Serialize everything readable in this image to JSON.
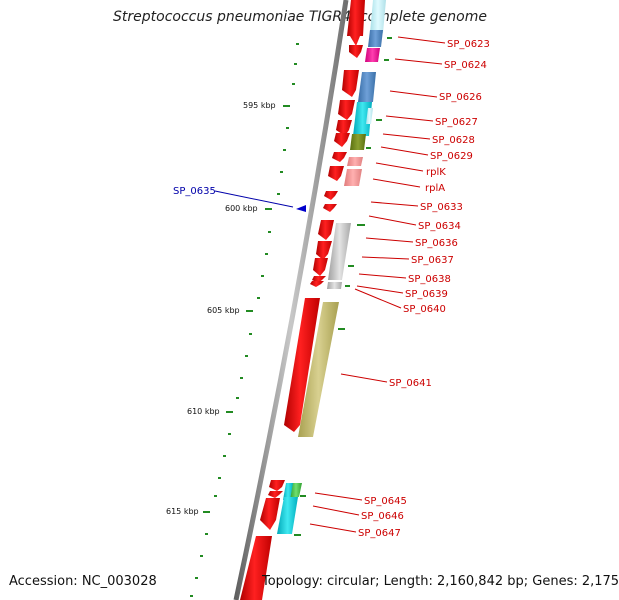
{
  "title": "Streptococcus pneumoniae TIGR4, complete genome",
  "footer": {
    "accession": "Accession: NC_003028",
    "topology": "Topology: circular; Length: 2,160,842 bp; Genes: 2,175"
  },
  "scale_labels": [
    "595 kbp",
    "600 kbp",
    "605 kbp",
    "610 kbp",
    "615 kbp"
  ],
  "selected_gene": "SP_0635",
  "gene_labels": [
    "SP_0623",
    "SP_0624",
    "SP_0626",
    "SP_0627",
    "SP_0628",
    "SP_0629",
    "rplK",
    "rplA",
    "SP_0633",
    "SP_0634",
    "SP_0636",
    "SP_0637",
    "SP_0638",
    "SP_0639",
    "SP_0640",
    "SP_0641",
    "SP_0645",
    "SP_0646",
    "SP_0647"
  ],
  "colors": {
    "backbone": "#888888",
    "strand_arrow": "#ee0000",
    "tick": "#228b22",
    "label": "#cc0000",
    "selected": "#0000aa"
  }
}
